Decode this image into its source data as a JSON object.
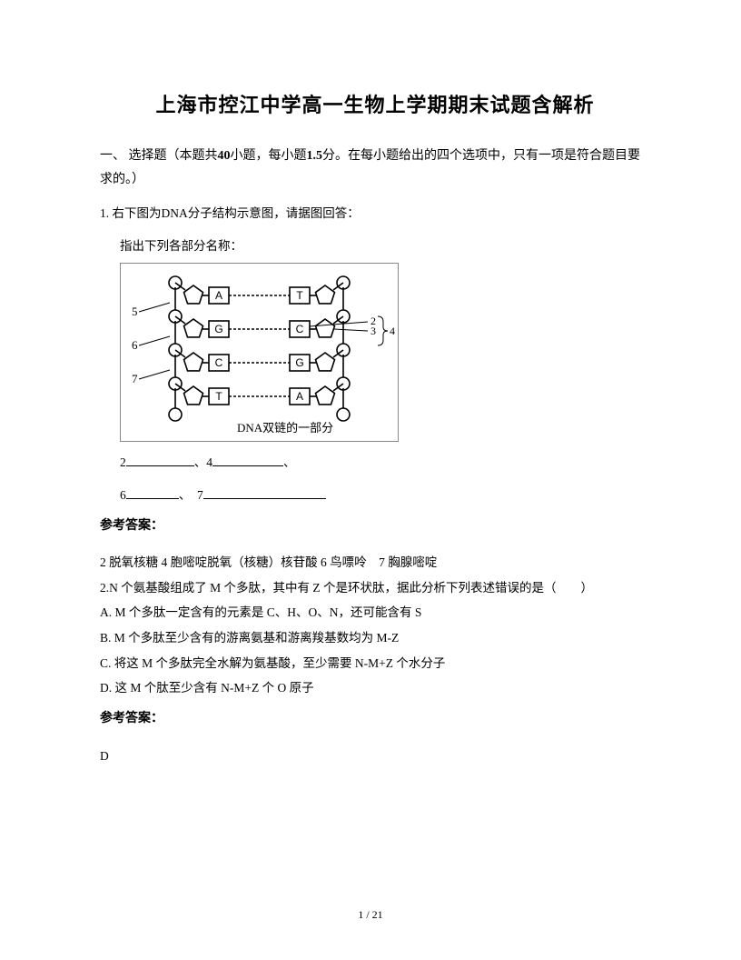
{
  "title": "上海市控江中学高一生物上学期期末试题含解析",
  "section1": {
    "head_prefix": "一、 选择题（本题共",
    "q_count": "40",
    "head_mid": "小题，每小题",
    "q_score": "1.5",
    "head_suffix": "分。在每小题给出的四个选项中，只有一项是符合题目要求的。）"
  },
  "q1": {
    "num": "1.",
    "stem": "右下图为DNA分子结构示意图，请据图回答：",
    "sub": "指出下列各部分名称：",
    "diagram": {
      "caption": "DNA双链的一部分",
      "left_labels": [
        "5",
        "6",
        "7"
      ],
      "right_labels": [
        "2",
        "3",
        "4"
      ],
      "pairs": [
        {
          "l": "A",
          "r": "T"
        },
        {
          "l": "G",
          "r": "C"
        },
        {
          "l": "C",
          "r": "G"
        },
        {
          "l": "T",
          "r": "A"
        }
      ],
      "border_color": "#888888",
      "stroke_color": "#000000"
    },
    "blanks_line1_a": "2",
    "blanks_line1_b": "、4",
    "blanks_line1_c": "、",
    "blanks_line2_a": "6",
    "blanks_line2_b": "、　7",
    "answer_label": "参考答案：",
    "answer_text": "2 脱氧核糖  4 胞嘧啶脱氧（核糖）核苷酸  6 鸟嘌呤　7 胸腺嘧啶"
  },
  "q2": {
    "num": "2.",
    "stem": "N 个氨基酸组成了 M 个多肽，其中有 Z 个是环状肽，据此分析下列表述错误的是（　　）",
    "optA": "A. M 个多肽一定含有的元素是 C、H、O、N，还可能含有 S",
    "optB": "B. M 个多肽至少含有的游离氨基和游离羧基数均为 M-Z",
    "optC": "C. 将这 M 个多肽完全水解为氨基酸，至少需要 N-M+Z 个水分子",
    "optD": "D. 这 M 个肽至少含有 N-M+Z 个 O 原子",
    "answer_label": "参考答案：",
    "answer": "D"
  },
  "pagefoot": "1 / 21"
}
